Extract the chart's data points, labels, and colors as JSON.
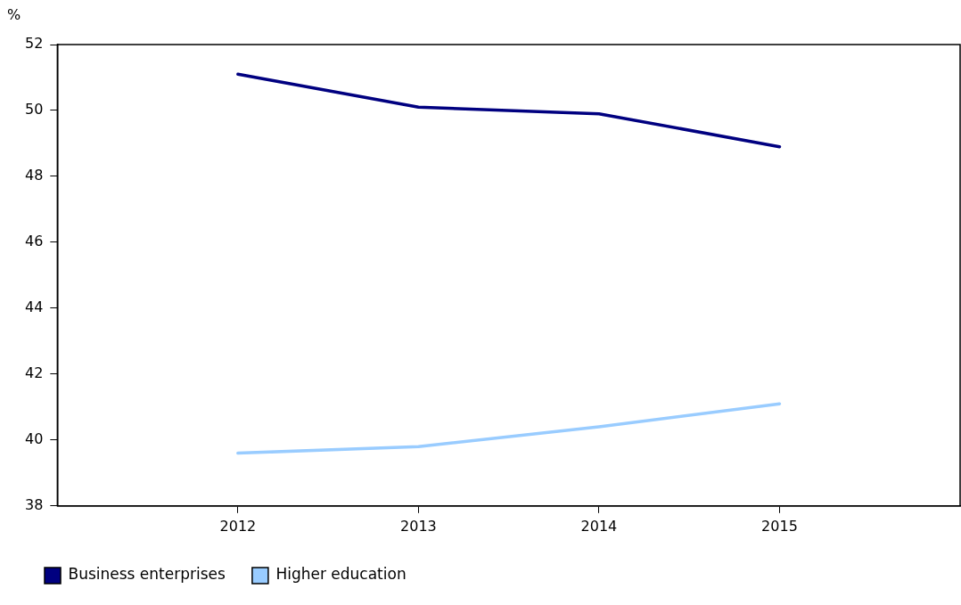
{
  "chart_data": {
    "type": "line",
    "ylabel": "%",
    "x": [
      2012,
      2013,
      2014,
      2015
    ],
    "xlim": [
      2011,
      2016
    ],
    "xticks": [
      2012,
      2013,
      2014,
      2015
    ],
    "ylim": [
      38,
      52
    ],
    "yticks": [
      38,
      40,
      42,
      44,
      46,
      48,
      50,
      52
    ],
    "grid": false,
    "legend": "bottom",
    "marker": "none",
    "line_style": "solid",
    "series": [
      {
        "name": "Business enterprises",
        "color": "#000080",
        "values": [
          51.1,
          50.1,
          49.9,
          48.9
        ]
      },
      {
        "name": "Higher education",
        "color": "#99ccff",
        "values": [
          39.6,
          39.8,
          40.4,
          41.1
        ]
      }
    ]
  }
}
